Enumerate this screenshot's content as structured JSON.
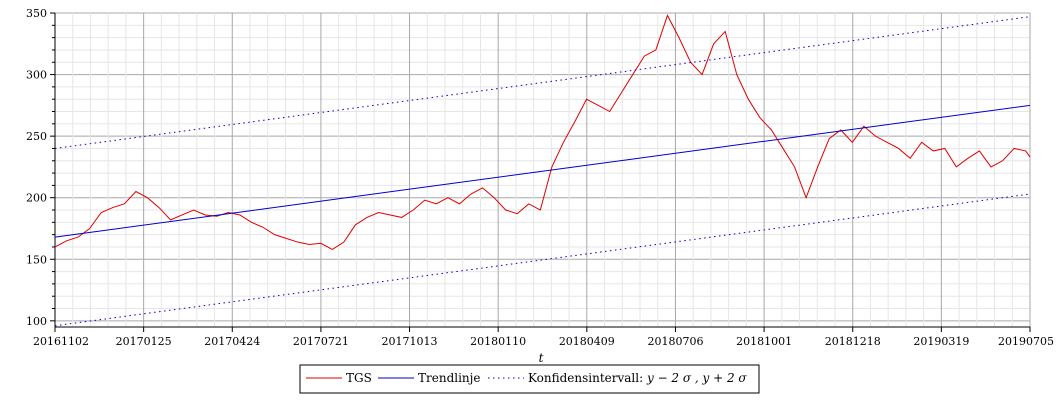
{
  "chart_data": {
    "type": "line",
    "title": "",
    "xlabel": "t",
    "ylabel": "",
    "ylim": [
      95,
      350
    ],
    "y_ticks": [
      "100",
      "150",
      "200",
      "250",
      "300",
      "350"
    ],
    "x_tick_labels": [
      "20161102",
      "20170125",
      "20170424",
      "20170721",
      "20171013",
      "20180110",
      "20180409",
      "20180706",
      "20181001",
      "20181218",
      "20190319",
      "20190705"
    ],
    "grid": true,
    "legend_placement": "bottom-center",
    "x_index_range": [
      0,
      675
    ],
    "series": [
      {
        "name": "TGS",
        "style": "solid",
        "color": "#e00000",
        "x": [
          0,
          8,
          16,
          24,
          32,
          40,
          48,
          56,
          64,
          72,
          80,
          88,
          96,
          104,
          112,
          120,
          128,
          136,
          144,
          152,
          160,
          168,
          176,
          184,
          192,
          200,
          208,
          216,
          224,
          232,
          240,
          248,
          256,
          264,
          272,
          280,
          288,
          296,
          304,
          312,
          320,
          328,
          336,
          344,
          352,
          360,
          368,
          376,
          384,
          392,
          400,
          408,
          416,
          424,
          432,
          440,
          448,
          456,
          464,
          472,
          480,
          488,
          496,
          504,
          512,
          520,
          528,
          536,
          544,
          552,
          560,
          568,
          576,
          584,
          592,
          600,
          608,
          616,
          624,
          632,
          640,
          648,
          656,
          664,
          672,
          675
        ],
        "y": [
          160,
          165,
          168,
          175,
          188,
          192,
          195,
          205,
          200,
          192,
          182,
          186,
          190,
          186,
          185,
          188,
          186,
          180,
          176,
          170,
          167,
          164,
          162,
          163,
          158,
          164,
          178,
          184,
          188,
          186,
          184,
          190,
          198,
          195,
          200,
          195,
          203,
          208,
          200,
          190,
          187,
          195,
          190,
          225,
          245,
          262,
          280,
          275,
          270,
          285,
          300,
          315,
          320,
          348,
          330,
          310,
          300,
          325,
          335,
          300,
          280,
          265,
          255,
          240,
          225,
          200,
          225,
          248,
          255,
          245,
          258,
          250,
          245,
          240,
          232,
          245,
          238,
          240,
          225,
          232,
          238,
          225,
          230,
          240,
          238,
          233
        ]
      },
      {
        "name": "Trendlinje",
        "style": "solid",
        "color": "#0000c8",
        "x": [
          0,
          675
        ],
        "y": [
          168,
          275
        ]
      },
      {
        "name": "Konfidensintervall: y − 2 σ , y + 2 σ",
        "style": "dotted",
        "color": "#0000c8",
        "x": [
          0,
          675
        ],
        "y": [
          240,
          347
        ]
      },
      {
        "name": "",
        "style": "dotted",
        "color": "#0000c8",
        "x": [
          0,
          675
        ],
        "y": [
          96,
          203
        ]
      }
    ]
  },
  "legend": {
    "items": [
      {
        "label": "TGS"
      },
      {
        "label": "Trendlinje"
      },
      {
        "label": "Konfidensintervall: ",
        "math": "y − 2 σ , y + 2 σ"
      }
    ]
  }
}
